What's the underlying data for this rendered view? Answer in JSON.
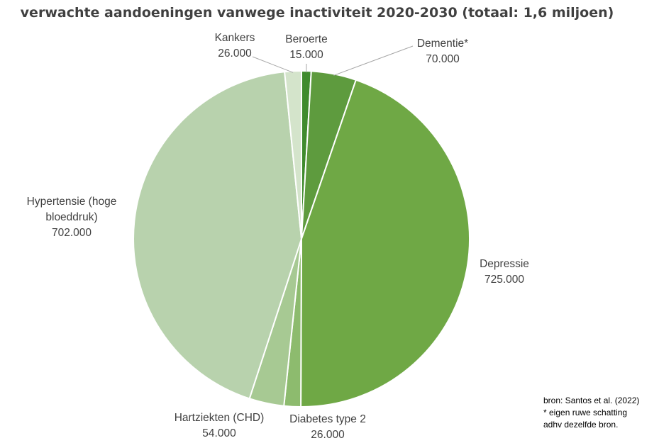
{
  "chart_data": {
    "type": "pie",
    "title": "verwachte aandoeningen vanwege inactiviteit 2020-2030 (totaal: 1,6 miljoen)",
    "slices": [
      {
        "name": "Beroerte",
        "value_label": "15.000",
        "value": 15000,
        "color": "#3f8b2d"
      },
      {
        "name": "Dementie*",
        "value_label": "70.000",
        "value": 70000,
        "color": "#5e9b3e"
      },
      {
        "name": "Depressie",
        "value_label": "725.000",
        "value": 725000,
        "color": "#6fa845"
      },
      {
        "name": "Diabetes type 2",
        "value_label": "26.000",
        "value": 26000,
        "color": "#8dbb6e"
      },
      {
        "name": "Hartziekten (CHD)",
        "value_label": "54.000",
        "value": 54000,
        "color": "#a7c993"
      },
      {
        "name": "Hypertensie (hoge bloeddruk)",
        "name_lines": [
          "Hypertensie (hoge",
          "bloeddruk)"
        ],
        "value_label": "702.000",
        "value": 702000,
        "color": "#b8d2ad"
      },
      {
        "name": "Kankers",
        "value_label": "26.000",
        "value": 26000,
        "color": "#d4e4cb"
      }
    ]
  },
  "source_note": {
    "line1": "bron: Santos et al. (2022)",
    "line2": "* eigen ruwe schatting",
    "line3": "adhv dezelfde bron."
  }
}
